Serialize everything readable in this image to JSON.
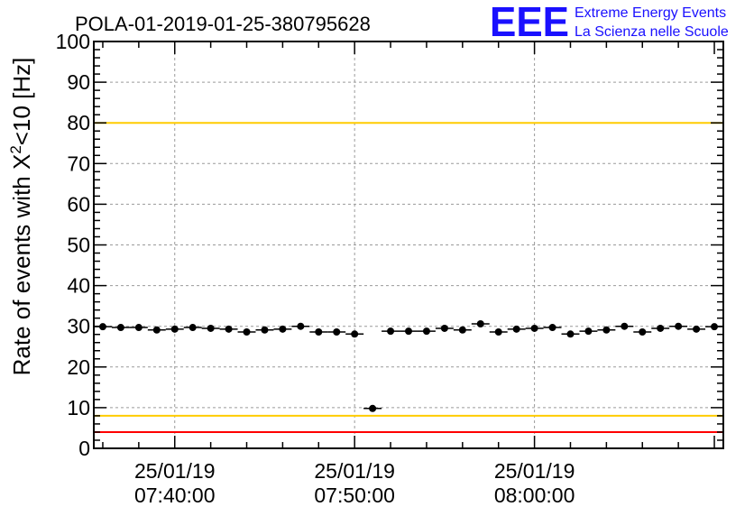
{
  "chart_data": {
    "type": "scatter",
    "title": "POLA-01-2019-01-25-380795628",
    "ylabel_prefix": "Rate of events with X",
    "ylabel_sup": "2",
    "ylabel_suffix": "<10 [Hz]",
    "ylim": [
      0,
      100
    ],
    "yticks": [
      "0",
      "10",
      "20",
      "30",
      "40",
      "50",
      "60",
      "70",
      "80",
      "90",
      "100"
    ],
    "xlim_minutes": [
      35.5,
      70.5
    ],
    "xticks": [
      {
        "date": "25/01/19",
        "time": "07:40:00",
        "minute": 40
      },
      {
        "date": "25/01/19",
        "time": "07:50:00",
        "minute": 50
      },
      {
        "date": "25/01/19",
        "time": "08:00:00",
        "minute": 60
      }
    ],
    "x_time": [
      "07:36:00",
      "07:37:00",
      "07:38:00",
      "07:39:00",
      "07:40:00",
      "07:41:00",
      "07:42:00",
      "07:43:00",
      "07:44:00",
      "07:45:00",
      "07:46:00",
      "07:47:00",
      "07:48:00",
      "07:49:00",
      "07:50:00",
      "07:51:00",
      "07:52:00",
      "07:53:00",
      "07:54:00",
      "07:55:00",
      "07:56:00",
      "07:57:00",
      "07:58:00",
      "07:59:00",
      "08:00:00",
      "08:01:00",
      "08:02:00",
      "08:03:00",
      "08:04:00",
      "08:05:00",
      "08:06:00",
      "08:07:00",
      "08:08:00",
      "08:09:00",
      "08:10:00"
    ],
    "x": [
      36,
      37,
      38,
      39,
      40,
      41,
      42,
      43,
      44,
      45,
      46,
      47,
      48,
      49,
      50,
      51,
      52,
      53,
      54,
      55,
      56,
      57,
      58,
      59,
      60,
      61,
      62,
      63,
      64,
      65,
      66,
      67,
      68,
      69,
      70
    ],
    "values": [
      29.9,
      29.7,
      29.7,
      29.1,
      29.3,
      29.7,
      29.5,
      29.3,
      28.6,
      29.1,
      29.3,
      30.0,
      28.6,
      28.6,
      28.1,
      9.8,
      28.8,
      28.8,
      28.8,
      29.5,
      29.1,
      30.6,
      28.6,
      29.3,
      29.5,
      29.7,
      28.1,
      28.8,
      29.1,
      30.0,
      28.6,
      29.5,
      30.0,
      29.3,
      29.9
    ],
    "hlines": [
      {
        "value": 100,
        "color": "#ff0000"
      },
      {
        "value": 80,
        "color": "#ffcc00"
      },
      {
        "value": 8,
        "color": "#ffcc00"
      },
      {
        "value": 4,
        "color": "#ff0000"
      }
    ],
    "grid": true,
    "marker_color": "#000000"
  },
  "logo": {
    "text": "EEE",
    "line1": "Extreme Energy Events",
    "line2": "La Scienza nelle Scuole",
    "color": "#1a10ff"
  }
}
